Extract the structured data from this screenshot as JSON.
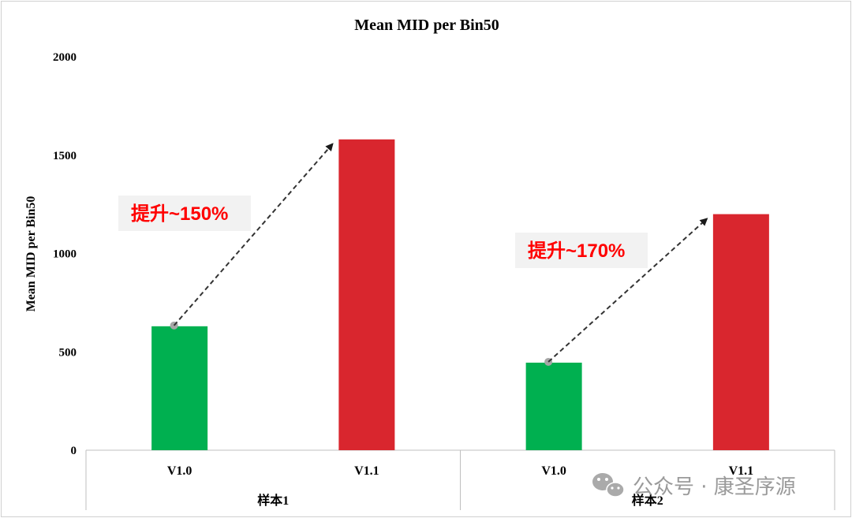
{
  "chart_data": {
    "type": "bar",
    "title": "Mean MID per Bin50",
    "ylabel": "Mean MID per Bin50",
    "xlabel": "",
    "ylim": [
      0,
      2000
    ],
    "yticks": [
      0,
      500,
      1000,
      1500,
      2000
    ],
    "groups": [
      {
        "name": "样本1",
        "bars": [
          {
            "label": "V1.0",
            "value": 630,
            "color": "#00b050"
          },
          {
            "label": "V1.1",
            "value": 1580,
            "color": "#d9262e"
          }
        ],
        "annotation": "提升~150%"
      },
      {
        "name": "样本2",
        "bars": [
          {
            "label": "V1.0",
            "value": 445,
            "color": "#00b050"
          },
          {
            "label": "V1.1",
            "value": 1200,
            "color": "#d9262e"
          }
        ],
        "annotation": "提升~170%"
      }
    ],
    "legend": "none",
    "grid": false
  },
  "watermark": {
    "text": "公众号 · 康圣序源",
    "icon": "wechat-icon"
  },
  "colors": {
    "v10": "#00b050",
    "v11": "#d9262e",
    "annotation_text": "#ff0000",
    "annotation_bg": "#f2f2f2",
    "arrow": "#333333"
  }
}
